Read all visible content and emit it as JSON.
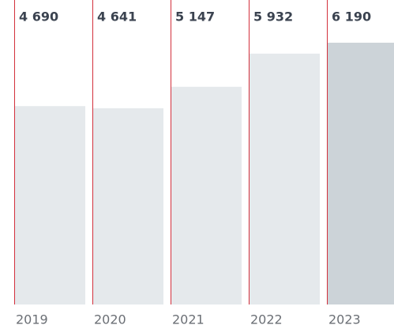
{
  "chart_data": {
    "type": "bar",
    "categories": [
      "2019",
      "2020",
      "2021",
      "2022",
      "2023"
    ],
    "values": [
      4690,
      4641,
      5147,
      5932,
      6190
    ],
    "value_labels": [
      "4 690",
      "4 641",
      "5 147",
      "5 932",
      "6 190"
    ],
    "colors": [
      "#e5e9ec",
      "#e5e9ec",
      "#e5e9ec",
      "#e5e9ec",
      "#ccd3d8"
    ],
    "ylim": [
      0,
      7200
    ]
  }
}
